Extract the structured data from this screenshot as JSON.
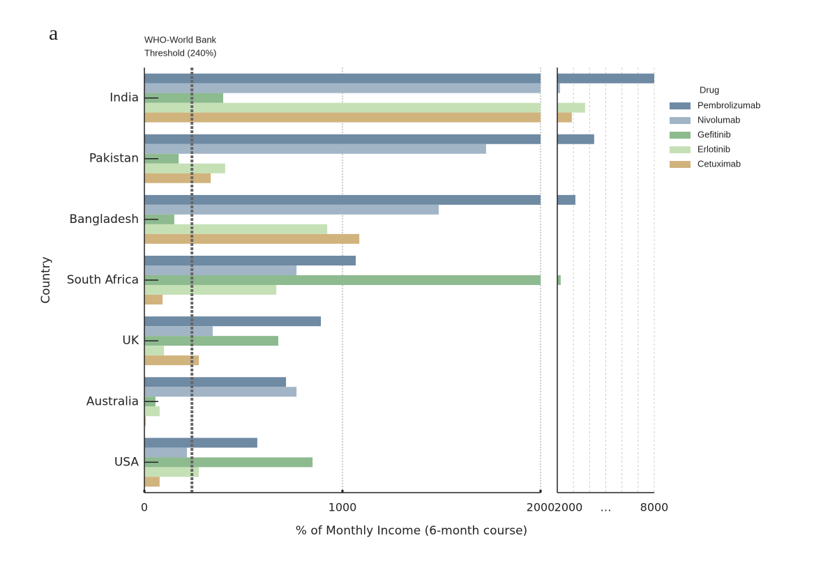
{
  "chart_data": {
    "type": "bar",
    "panel_label": "a",
    "ylabel": "Country",
    "xlabel": "% of Monthly Income (6-month course)",
    "threshold": 240,
    "threshold_label": [
      "WHO-World Bank",
      "Threshold (240%)"
    ],
    "legend_title": "Drug",
    "legend": "right",
    "categories": [
      "India",
      "Pakistan",
      "Bangladesh",
      "South Africa",
      "UK",
      "Australia",
      "USA"
    ],
    "series": [
      {
        "name": "Pembrolizumab",
        "color": "#6f8aa3",
        "values": [
          8000,
          4280,
          3120,
          1067,
          891,
          715,
          570
        ]
      },
      {
        "name": "Nivolumab",
        "color": "#a2b5c6",
        "values": [
          2170,
          1725,
          1486,
          768,
          345,
          768,
          215
        ]
      },
      {
        "name": "Gefitinib",
        "color": "#8dba8f",
        "values": [
          398,
          173,
          151,
          2210,
          676,
          56,
          849
        ]
      },
      {
        "name": "Erlotinib",
        "color": "#c6e0b6",
        "values": [
          3720,
          408,
          923,
          666,
          99,
          77,
          275
        ]
      },
      {
        "name": "Cetuximab",
        "color": "#d1b37d",
        "values": [
          2900,
          335,
          1085,
          92,
          275,
          7,
          77
        ]
      }
    ],
    "xlim": [
      0,
      2000
    ],
    "xticks": [
      0,
      1000,
      2000
    ],
    "x2lim": [
      2000,
      8000
    ],
    "x2ticks": [
      2000,
      {
        "value": 5000,
        "label": "…"
      },
      8000
    ],
    "x2grid": [
      3000,
      4000,
      5000,
      6000,
      7000,
      8000
    ],
    "grid": true
  }
}
